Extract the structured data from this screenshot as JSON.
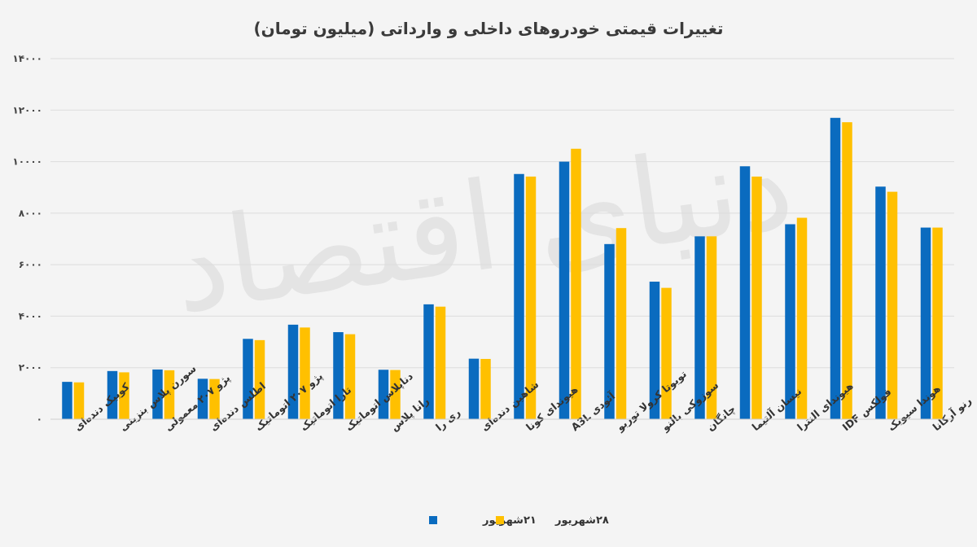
{
  "chart_data": {
    "type": "bar",
    "title": "تغییرات قیمتی خودروهای داخلی و وارداتی (میلیون تومان)",
    "xlabel": "",
    "ylabel": "",
    "ylim": [
      0,
      14000
    ],
    "yticks": [
      "۱۴۰۰۰",
      "۱۲۰۰۰",
      "۱۰۰۰۰",
      "۸۰۰۰",
      "۶۰۰۰",
      "۴۰۰۰",
      "۲۰۰۰",
      "۰"
    ],
    "ytick_values": [
      14000,
      12000,
      10000,
      8000,
      6000,
      4000,
      2000,
      0
    ],
    "grid": true,
    "legend_position": "bottom",
    "categories": [
      "کوییک دنده‌ای",
      "سورن پلاس بنزینی",
      "پژو ۲۰۷ معمولی",
      "اطلس دنده‌ای",
      "پژو ۲۰۷ اتوماتیک",
      "تارا اتوماتیک",
      "دناپلاس اتوماتیک",
      "رانا پلاس",
      "ری را",
      "شاهین دنده‌ای",
      "هیوندای کونا",
      "آئودی A3L",
      "تویوتا کرولا توربو",
      "سوزوکی بالنو",
      "چانگان",
      "نیسان آلتیما",
      "هیوندای النترا",
      "فولکس IDF",
      "هوندا سیویک",
      "رنو آرکانا"
    ],
    "series": [
      {
        "name": "۲۱شهریور",
        "color": "#0a6bbf",
        "values": [
          1450,
          1870,
          1930,
          1570,
          3120,
          3670,
          3380,
          1920,
          4460,
          2350,
          9520,
          10000,
          6800,
          5340,
          7100,
          9820,
          7570,
          11700,
          9030,
          7440
        ]
      },
      {
        "name": "۲۸شهریور",
        "color": "#ffc000",
        "values": [
          1430,
          1820,
          1900,
          1560,
          3070,
          3560,
          3300,
          1910,
          4370,
          2340,
          9420,
          10500,
          7420,
          5100,
          7100,
          9420,
          7820,
          11530,
          8830,
          7440
        ]
      }
    ]
  },
  "watermark": "دنیای اقتصاد"
}
